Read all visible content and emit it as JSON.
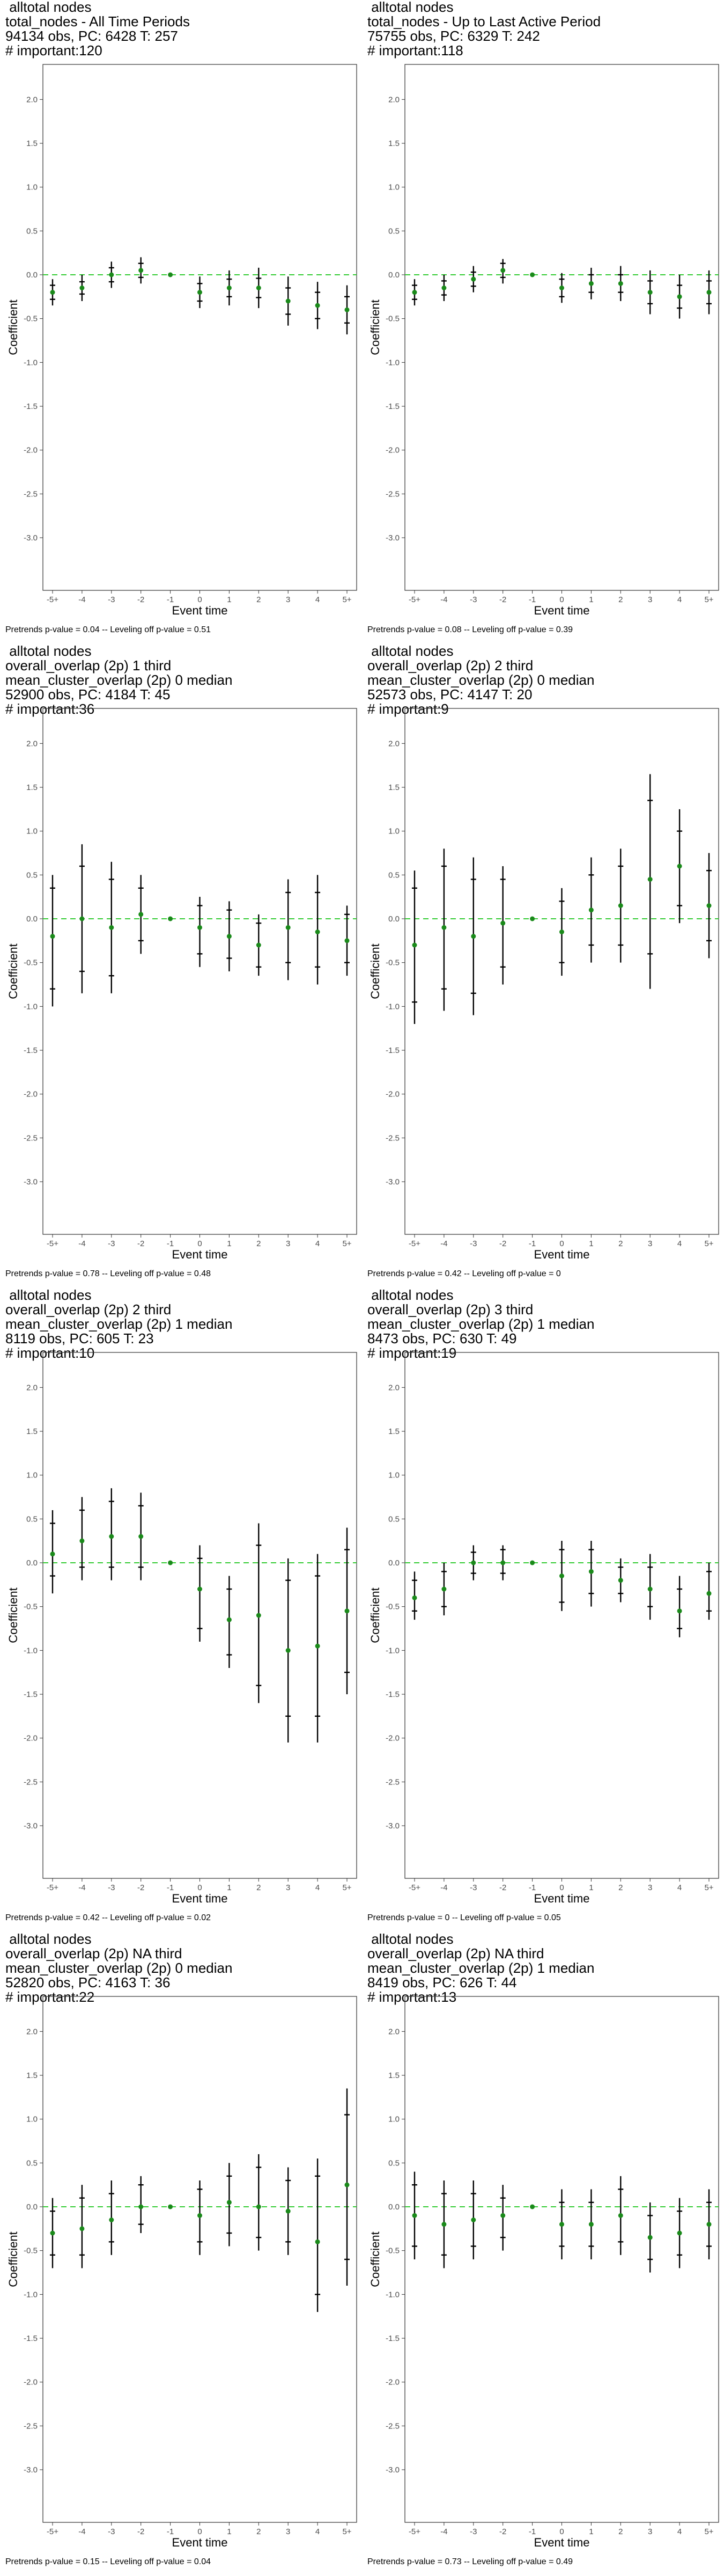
{
  "common": {
    "xlabel": "Event time",
    "ylabel": "Coefficient",
    "x_ticks": [
      "-5+",
      "-4",
      "-3",
      "-2",
      "-1",
      "0",
      "1",
      "2",
      "3",
      "4",
      "5+"
    ],
    "y_ticks": [
      "2.0",
      "1.5",
      "1.0",
      "0.5",
      "0.0",
      "-0.5",
      "-1.0",
      "-1.5",
      "-2.0",
      "-2.5",
      "-3.0"
    ],
    "ylim": [
      -3.6,
      2.4
    ],
    "colors": {
      "point": "#1a8a1a",
      "zero_line": "#33cc33",
      "bar": "#000000",
      "frame": "#333333"
    }
  },
  "panels": [
    {
      "title_lines": [
        "alltotal nodes",
        "total_nodes - All Time Periods",
        "94134 obs, PC: 6428 T: 257",
        "# important:120"
      ],
      "note": "Pretrends p-value = 0.04 -- Leveling off p-value = 0.51"
    },
    {
      "title_lines": [
        "alltotal nodes",
        "total_nodes - Up to Last Active Period",
        "75755 obs, PC: 6329 T: 242",
        "# important:118"
      ],
      "note": "Pretrends p-value = 0.08 -- Leveling off p-value = 0.39"
    },
    {
      "title_lines": [
        "alltotal nodes",
        "overall_overlap (2p) 1 third",
        "mean_cluster_overlap (2p) 0 median",
        "52900 obs, PC: 4184 T: 45",
        "# important:36"
      ],
      "note": "Pretrends p-value = 0.78 -- Leveling off p-value = 0.48"
    },
    {
      "title_lines": [
        "alltotal nodes",
        "overall_overlap (2p) 2 third",
        "mean_cluster_overlap (2p) 0 median",
        "52573 obs, PC: 4147 T: 20",
        "# important:9"
      ],
      "note": "Pretrends p-value = 0.42 -- Leveling off p-value = 0"
    },
    {
      "title_lines": [
        "alltotal nodes",
        "overall_overlap (2p) 2 third",
        "mean_cluster_overlap (2p) 1 median",
        "8119 obs, PC: 605 T: 23",
        "# important:10"
      ],
      "note": "Pretrends p-value = 0.42 -- Leveling off p-value = 0.02"
    },
    {
      "title_lines": [
        "alltotal nodes",
        "overall_overlap (2p) 3 third",
        "mean_cluster_overlap (2p) 1 median",
        "8473 obs, PC: 630 T: 49",
        "# important:19"
      ],
      "note": "Pretrends p-value = 0 -- Leveling off p-value = 0.05"
    },
    {
      "title_lines": [
        "alltotal nodes",
        "overall_overlap (2p) NA third",
        "mean_cluster_overlap (2p) 0 median",
        "52820 obs, PC: 4163 T: 36",
        "# important:22"
      ],
      "note": "Pretrends p-value = 0.15 -- Leveling off p-value = 0.04"
    },
    {
      "title_lines": [
        "alltotal nodes",
        "overall_overlap (2p) NA third",
        "mean_cluster_overlap (2p) 1 median",
        "8419 obs, PC: 626 T: 44",
        "# important:13"
      ],
      "note": "Pretrends p-value = 0.73 -- Leveling off p-value = 0.49"
    }
  ],
  "chart_data": [
    {
      "type": "scatter",
      "x": [
        "-5+",
        "-4",
        "-3",
        "-2",
        "-1",
        "0",
        "1",
        "2",
        "3",
        "4",
        "5+"
      ],
      "ylim": [
        -3.6,
        2.4
      ],
      "series": [
        {
          "values": [
            -0.2,
            -0.15,
            0.0,
            0.05,
            0.0,
            -0.2,
            -0.15,
            -0.15,
            -0.3,
            -0.35,
            -0.4
          ],
          "ci_inner": [
            [
              -0.28,
              -0.12
            ],
            [
              -0.22,
              -0.08
            ],
            [
              -0.08,
              0.08
            ],
            [
              -0.03,
              0.13
            ],
            null,
            [
              -0.3,
              -0.1
            ],
            [
              -0.25,
              -0.05
            ],
            [
              -0.26,
              -0.04
            ],
            [
              -0.45,
              -0.15
            ],
            [
              -0.5,
              -0.2
            ],
            [
              -0.55,
              -0.25
            ]
          ],
          "ci_outer": [
            [
              -0.35,
              -0.05
            ],
            [
              -0.3,
              0.0
            ],
            [
              -0.15,
              0.15
            ],
            [
              -0.1,
              0.2
            ],
            null,
            [
              -0.38,
              -0.02
            ],
            [
              -0.35,
              0.05
            ],
            [
              -0.38,
              0.08
            ],
            [
              -0.58,
              -0.02
            ],
            [
              -0.62,
              -0.08
            ],
            [
              -0.68,
              -0.12
            ]
          ]
        }
      ]
    },
    {
      "type": "scatter",
      "x": [
        "-5+",
        "-4",
        "-3",
        "-2",
        "-1",
        "0",
        "1",
        "2",
        "3",
        "4",
        "5+"
      ],
      "ylim": [
        -3.6,
        2.4
      ],
      "series": [
        {
          "values": [
            -0.2,
            -0.15,
            -0.05,
            0.05,
            0.0,
            -0.15,
            -0.1,
            -0.1,
            -0.2,
            -0.25,
            -0.2
          ],
          "ci_inner": [
            [
              -0.28,
              -0.12
            ],
            [
              -0.23,
              -0.07
            ],
            [
              -0.13,
              0.03
            ],
            [
              -0.03,
              0.13
            ],
            null,
            [
              -0.25,
              -0.05
            ],
            [
              -0.2,
              0.0
            ],
            [
              -0.2,
              0.0
            ],
            [
              -0.33,
              -0.07
            ],
            [
              -0.38,
              -0.12
            ],
            [
              -0.33,
              -0.07
            ]
          ],
          "ci_outer": [
            [
              -0.35,
              -0.05
            ],
            [
              -0.3,
              0.0
            ],
            [
              -0.2,
              0.1
            ],
            [
              -0.1,
              0.18
            ],
            null,
            [
              -0.32,
              0.02
            ],
            [
              -0.28,
              0.08
            ],
            [
              -0.3,
              0.1
            ],
            [
              -0.45,
              0.05
            ],
            [
              -0.5,
              0.0
            ],
            [
              -0.45,
              0.05
            ]
          ]
        }
      ]
    },
    {
      "type": "scatter",
      "x": [
        "-5+",
        "-4",
        "-3",
        "-2",
        "-1",
        "0",
        "1",
        "2",
        "3",
        "4",
        "5+"
      ],
      "ylim": [
        -3.6,
        2.4
      ],
      "series": [
        {
          "values": [
            -0.2,
            0.0,
            -0.1,
            0.05,
            0.0,
            -0.1,
            -0.2,
            -0.3,
            -0.1,
            -0.15,
            -0.25
          ],
          "ci_inner": [
            [
              -0.8,
              0.35
            ],
            [
              -0.6,
              0.6
            ],
            [
              -0.65,
              0.45
            ],
            [
              -0.25,
              0.35
            ],
            null,
            [
              -0.4,
              0.15
            ],
            [
              -0.45,
              0.1
            ],
            [
              -0.55,
              -0.05
            ],
            [
              -0.5,
              0.3
            ],
            [
              -0.55,
              0.3
            ],
            [
              -0.5,
              0.05
            ]
          ],
          "ci_outer": [
            [
              -1.0,
              0.5
            ],
            [
              -0.85,
              0.85
            ],
            [
              -0.85,
              0.65
            ],
            [
              -0.4,
              0.5
            ],
            null,
            [
              -0.55,
              0.25
            ],
            [
              -0.6,
              0.2
            ],
            [
              -0.65,
              0.05
            ],
            [
              -0.7,
              0.45
            ],
            [
              -0.75,
              0.5
            ],
            [
              -0.65,
              0.15
            ]
          ]
        }
      ]
    },
    {
      "type": "scatter",
      "x": [
        "-5+",
        "-4",
        "-3",
        "-2",
        "-1",
        "0",
        "1",
        "2",
        "3",
        "4",
        "5+"
      ],
      "ylim": [
        -3.6,
        2.4
      ],
      "series": [
        {
          "values": [
            -0.3,
            -0.1,
            -0.2,
            -0.05,
            0.0,
            -0.15,
            0.1,
            0.15,
            0.45,
            0.6,
            0.15
          ],
          "ci_inner": [
            [
              -0.95,
              0.35
            ],
            [
              -0.8,
              0.6
            ],
            [
              -0.85,
              0.45
            ],
            [
              -0.55,
              0.45
            ],
            null,
            [
              -0.5,
              0.2
            ],
            [
              -0.3,
              0.5
            ],
            [
              -0.3,
              0.6
            ],
            [
              -0.4,
              1.35
            ],
            [
              0.15,
              1.0
            ],
            [
              -0.25,
              0.55
            ]
          ],
          "ci_outer": [
            [
              -1.2,
              0.55
            ],
            [
              -1.05,
              0.8
            ],
            [
              -1.1,
              0.7
            ],
            [
              -0.75,
              0.6
            ],
            null,
            [
              -0.65,
              0.35
            ],
            [
              -0.5,
              0.7
            ],
            [
              -0.5,
              0.8
            ],
            [
              -0.8,
              1.65
            ],
            [
              -0.05,
              1.25
            ],
            [
              -0.45,
              0.75
            ]
          ]
        }
      ]
    },
    {
      "type": "scatter",
      "x": [
        "-5+",
        "-4",
        "-3",
        "-2",
        "-1",
        "0",
        "1",
        "2",
        "3",
        "4",
        "5+"
      ],
      "ylim": [
        -3.6,
        2.4
      ],
      "series": [
        {
          "values": [
            0.1,
            0.25,
            0.3,
            0.3,
            0.0,
            -0.3,
            -0.65,
            -0.6,
            -1.0,
            -0.95,
            -0.55
          ],
          "ci_inner": [
            [
              -0.15,
              0.45
            ],
            [
              -0.05,
              0.6
            ],
            [
              -0.05,
              0.7
            ],
            [
              -0.05,
              0.65
            ],
            null,
            [
              -0.75,
              0.05
            ],
            [
              -1.05,
              -0.3
            ],
            [
              -1.4,
              0.2
            ],
            [
              -1.75,
              -0.2
            ],
            [
              -1.75,
              -0.15
            ],
            [
              -1.25,
              0.15
            ]
          ],
          "ci_outer": [
            [
              -0.35,
              0.6
            ],
            [
              -0.2,
              0.75
            ],
            [
              -0.2,
              0.85
            ],
            [
              -0.2,
              0.8
            ],
            null,
            [
              -0.9,
              0.2
            ],
            [
              -1.2,
              -0.15
            ],
            [
              -1.6,
              0.45
            ],
            [
              -2.05,
              0.05
            ],
            [
              -2.05,
              0.1
            ],
            [
              -1.5,
              0.4
            ]
          ]
        }
      ]
    },
    {
      "type": "scatter",
      "x": [
        "-5+",
        "-4",
        "-3",
        "-2",
        "-1",
        "0",
        "1",
        "2",
        "3",
        "4",
        "5+"
      ],
      "ylim": [
        -3.6,
        2.4
      ],
      "series": [
        {
          "values": [
            -0.4,
            -0.3,
            0.0,
            0.0,
            0.0,
            -0.15,
            -0.1,
            -0.2,
            -0.3,
            -0.55,
            -0.35
          ],
          "ci_inner": [
            [
              -0.55,
              -0.2
            ],
            [
              -0.5,
              -0.1
            ],
            [
              -0.12,
              0.12
            ],
            [
              -0.12,
              0.15
            ],
            null,
            [
              -0.45,
              0.15
            ],
            [
              -0.35,
              0.15
            ],
            [
              -0.35,
              -0.05
            ],
            [
              -0.5,
              -0.05
            ],
            [
              -0.75,
              -0.3
            ],
            [
              -0.55,
              -0.1
            ]
          ],
          "ci_outer": [
            [
              -0.65,
              -0.1
            ],
            [
              -0.6,
              0.0
            ],
            [
              -0.2,
              0.2
            ],
            [
              -0.2,
              0.2
            ],
            null,
            [
              -0.55,
              0.25
            ],
            [
              -0.5,
              0.25
            ],
            [
              -0.45,
              0.05
            ],
            [
              -0.65,
              0.1
            ],
            [
              -0.85,
              -0.15
            ],
            [
              -0.65,
              0.0
            ]
          ]
        }
      ]
    },
    {
      "type": "scatter",
      "x": [
        "-5+",
        "-4",
        "-3",
        "-2",
        "-1",
        "0",
        "1",
        "2",
        "3",
        "4",
        "5+"
      ],
      "ylim": [
        -3.6,
        2.4
      ],
      "series": [
        {
          "values": [
            -0.3,
            -0.25,
            -0.15,
            0.0,
            0.0,
            -0.1,
            0.05,
            0.0,
            -0.05,
            -0.4,
            0.25
          ],
          "ci_inner": [
            [
              -0.55,
              -0.05
            ],
            [
              -0.55,
              0.1
            ],
            [
              -0.4,
              0.15
            ],
            [
              -0.2,
              0.25
            ],
            null,
            [
              -0.4,
              0.2
            ],
            [
              -0.3,
              0.35
            ],
            [
              -0.35,
              0.45
            ],
            [
              -0.4,
              0.3
            ],
            [
              -1.0,
              0.35
            ],
            [
              -0.6,
              1.05
            ]
          ],
          "ci_outer": [
            [
              -0.7,
              0.1
            ],
            [
              -0.7,
              0.25
            ],
            [
              -0.55,
              0.3
            ],
            [
              -0.3,
              0.35
            ],
            null,
            [
              -0.55,
              0.3
            ],
            [
              -0.45,
              0.5
            ],
            [
              -0.5,
              0.6
            ],
            [
              -0.55,
              0.45
            ],
            [
              -1.2,
              0.55
            ],
            [
              -0.9,
              1.35
            ]
          ]
        }
      ]
    },
    {
      "type": "scatter",
      "x": [
        "-5+",
        "-4",
        "-3",
        "-2",
        "-1",
        "0",
        "1",
        "2",
        "3",
        "4",
        "5+"
      ],
      "ylim": [
        -3.6,
        2.4
      ],
      "series": [
        {
          "values": [
            -0.1,
            -0.2,
            -0.15,
            -0.1,
            0.0,
            -0.2,
            -0.2,
            -0.1,
            -0.35,
            -0.3,
            -0.2
          ],
          "ci_inner": [
            [
              -0.45,
              0.25
            ],
            [
              -0.55,
              0.15
            ],
            [
              -0.45,
              0.15
            ],
            [
              -0.35,
              0.1
            ],
            null,
            [
              -0.45,
              0.05
            ],
            [
              -0.45,
              0.05
            ],
            [
              -0.4,
              0.2
            ],
            [
              -0.6,
              -0.1
            ],
            [
              -0.55,
              -0.05
            ],
            [
              -0.45,
              0.05
            ]
          ],
          "ci_outer": [
            [
              -0.6,
              0.4
            ],
            [
              -0.7,
              0.3
            ],
            [
              -0.6,
              0.3
            ],
            [
              -0.5,
              0.25
            ],
            null,
            [
              -0.6,
              0.2
            ],
            [
              -0.6,
              0.2
            ],
            [
              -0.55,
              0.35
            ],
            [
              -0.75,
              0.05
            ],
            [
              -0.7,
              0.1
            ],
            [
              -0.6,
              0.2
            ]
          ]
        }
      ]
    }
  ]
}
